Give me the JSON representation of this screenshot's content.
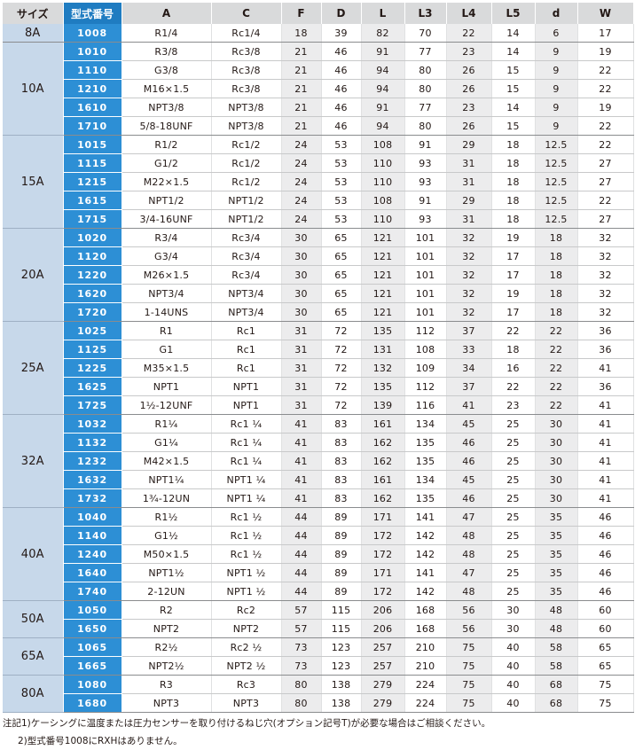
{
  "headers": [
    "サイズ",
    "型式番号",
    "A",
    "C",
    "F",
    "D",
    "L",
    "L3",
    "L4",
    "L5",
    "d",
    "W"
  ],
  "groups": [
    {
      "size": "8A",
      "rows": [
        [
          "1008",
          "R1/4",
          "Rc1/4",
          "18",
          "39",
          "82",
          "70",
          "22",
          "14",
          "6",
          "17"
        ]
      ]
    },
    {
      "size": "10A",
      "rows": [
        [
          "1010",
          "R3/8",
          "Rc3/8",
          "21",
          "46",
          "91",
          "77",
          "23",
          "14",
          "9",
          "19"
        ],
        [
          "1110",
          "G3/8",
          "Rc3/8",
          "21",
          "46",
          "94",
          "80",
          "26",
          "15",
          "9",
          "22"
        ],
        [
          "1210",
          "M16×1.5",
          "Rc3/8",
          "21",
          "46",
          "94",
          "80",
          "26",
          "15",
          "9",
          "22"
        ],
        [
          "1610",
          "NPT3/8",
          "NPT3/8",
          "21",
          "46",
          "91",
          "77",
          "23",
          "14",
          "9",
          "19"
        ],
        [
          "1710",
          "5/8-18UNF",
          "NPT3/8",
          "21",
          "46",
          "94",
          "80",
          "26",
          "15",
          "9",
          "22"
        ]
      ]
    },
    {
      "size": "15A",
      "rows": [
        [
          "1015",
          "R1/2",
          "Rc1/2",
          "24",
          "53",
          "108",
          "91",
          "29",
          "18",
          "12.5",
          "22"
        ],
        [
          "1115",
          "G1/2",
          "Rc1/2",
          "24",
          "53",
          "110",
          "93",
          "31",
          "18",
          "12.5",
          "27"
        ],
        [
          "1215",
          "M22×1.5",
          "Rc1/2",
          "24",
          "53",
          "110",
          "93",
          "31",
          "18",
          "12.5",
          "27"
        ],
        [
          "1615",
          "NPT1/2",
          "NPT1/2",
          "24",
          "53",
          "108",
          "91",
          "29",
          "18",
          "12.5",
          "22"
        ],
        [
          "1715",
          "3/4-16UNF",
          "NPT1/2",
          "24",
          "53",
          "110",
          "93",
          "31",
          "18",
          "12.5",
          "27"
        ]
      ]
    },
    {
      "size": "20A",
      "rows": [
        [
          "1020",
          "R3/4",
          "Rc3/4",
          "30",
          "65",
          "121",
          "101",
          "32",
          "19",
          "18",
          "32"
        ],
        [
          "1120",
          "G3/4",
          "Rc3/4",
          "30",
          "65",
          "121",
          "101",
          "32",
          "17",
          "18",
          "32"
        ],
        [
          "1220",
          "M26×1.5",
          "Rc3/4",
          "30",
          "65",
          "121",
          "101",
          "32",
          "17",
          "18",
          "32"
        ],
        [
          "1620",
          "NPT3/4",
          "NPT3/4",
          "30",
          "65",
          "121",
          "101",
          "32",
          "19",
          "18",
          "32"
        ],
        [
          "1720",
          "1-14UNS",
          "NPT3/4",
          "30",
          "65",
          "121",
          "101",
          "32",
          "17",
          "18",
          "32"
        ]
      ]
    },
    {
      "size": "25A",
      "rows": [
        [
          "1025",
          "R1",
          "Rc1",
          "31",
          "72",
          "135",
          "112",
          "37",
          "22",
          "22",
          "36"
        ],
        [
          "1125",
          "G1",
          "Rc1",
          "31",
          "72",
          "131",
          "108",
          "33",
          "18",
          "22",
          "36"
        ],
        [
          "1225",
          "M35×1.5",
          "Rc1",
          "31",
          "72",
          "132",
          "109",
          "34",
          "16",
          "22",
          "41"
        ],
        [
          "1625",
          "NPT1",
          "NPT1",
          "31",
          "72",
          "135",
          "112",
          "37",
          "22",
          "22",
          "36"
        ],
        [
          "1725",
          "1½-12UNF",
          "NPT1",
          "31",
          "72",
          "139",
          "116",
          "41",
          "23",
          "22",
          "41"
        ]
      ]
    },
    {
      "size": "32A",
      "rows": [
        [
          "1032",
          "R1¼",
          "Rc1 ¼",
          "41",
          "83",
          "161",
          "134",
          "45",
          "25",
          "30",
          "41"
        ],
        [
          "1132",
          "G1¼",
          "Rc1 ¼",
          "41",
          "83",
          "162",
          "135",
          "46",
          "25",
          "30",
          "41"
        ],
        [
          "1232",
          "M42×1.5",
          "Rc1 ¼",
          "41",
          "83",
          "162",
          "135",
          "46",
          "25",
          "30",
          "41"
        ],
        [
          "1632",
          "NPT1¼",
          "NPT1 ¼",
          "41",
          "83",
          "161",
          "134",
          "45",
          "25",
          "30",
          "41"
        ],
        [
          "1732",
          "1¾-12UN",
          "NPT1 ¼",
          "41",
          "83",
          "162",
          "135",
          "46",
          "25",
          "30",
          "41"
        ]
      ]
    },
    {
      "size": "40A",
      "rows": [
        [
          "1040",
          "R1½",
          "Rc1 ½",
          "44",
          "89",
          "171",
          "141",
          "47",
          "25",
          "35",
          "46"
        ],
        [
          "1140",
          "G1½",
          "Rc1 ½",
          "44",
          "89",
          "172",
          "142",
          "48",
          "25",
          "35",
          "46"
        ],
        [
          "1240",
          "M50×1.5",
          "Rc1 ½",
          "44",
          "89",
          "172",
          "142",
          "48",
          "25",
          "35",
          "46"
        ],
        [
          "1640",
          "NPT1½",
          "NPT1 ½",
          "44",
          "89",
          "171",
          "141",
          "47",
          "25",
          "35",
          "46"
        ],
        [
          "1740",
          "2-12UN",
          "NPT1 ½",
          "44",
          "89",
          "172",
          "142",
          "48",
          "25",
          "35",
          "46"
        ]
      ]
    },
    {
      "size": "50A",
      "rows": [
        [
          "1050",
          "R2",
          "Rc2",
          "57",
          "115",
          "206",
          "168",
          "56",
          "30",
          "48",
          "60"
        ],
        [
          "1650",
          "NPT2",
          "NPT2",
          "57",
          "115",
          "206",
          "168",
          "56",
          "30",
          "48",
          "60"
        ]
      ]
    },
    {
      "size": "65A",
      "rows": [
        [
          "1065",
          "R2½",
          "Rc2 ½",
          "73",
          "123",
          "257",
          "210",
          "75",
          "40",
          "58",
          "65"
        ],
        [
          "1665",
          "NPT2½",
          "NPT2 ½",
          "73",
          "123",
          "257",
          "210",
          "75",
          "40",
          "58",
          "65"
        ]
      ]
    },
    {
      "size": "80A",
      "rows": [
        [
          "1080",
          "R3",
          "Rc3",
          "80",
          "138",
          "279",
          "224",
          "75",
          "40",
          "68",
          "75"
        ],
        [
          "1680",
          "NPT3",
          "NPT3",
          "80",
          "138",
          "279",
          "224",
          "75",
          "40",
          "68",
          "75"
        ]
      ]
    }
  ],
  "notes": [
    "注記1)ケーシングに温度または圧力センサーを取り付けるねじ穴(オプション記号T)が必要な場合はご相談ください。",
    "2)型式番号1008にRXHはありません。"
  ],
  "colors": {
    "header_gray": "#d9dadb",
    "model_blue": "#2d8fd5",
    "model_header_blue": "#1f7cc1",
    "size_light_blue": "#c7d8ea",
    "alt_column_gray": "#ececed"
  }
}
